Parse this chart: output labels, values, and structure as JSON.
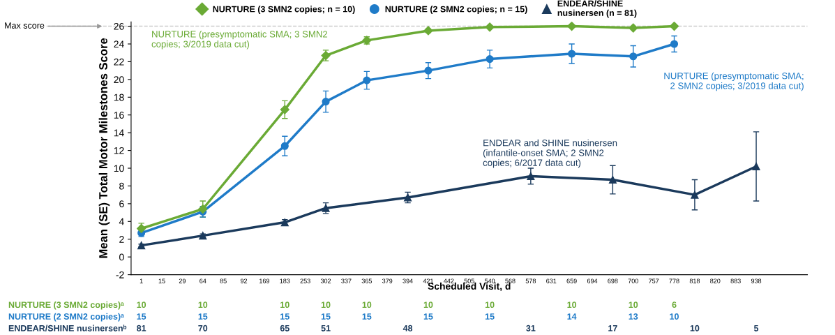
{
  "chart_data": {
    "type": "line",
    "ylabel": "Mean (SE) Total Motor Milestones Score",
    "xlabel": "Scheduled Visit, d",
    "categories": [
      "1",
      "15",
      "29",
      "64",
      "85",
      "92",
      "169",
      "183",
      "253",
      "302",
      "337",
      "365",
      "379",
      "394",
      "421",
      "442",
      "505",
      "540",
      "568",
      "578",
      "631",
      "659",
      "694",
      "698",
      "700",
      "757",
      "778",
      "818",
      "820",
      "883",
      "938"
    ],
    "series": [
      {
        "name": "NURTURE (3 SMN2 copies; n = 10)",
        "color": "#6aaa35",
        "marker": "diamond",
        "x": [
          "1",
          "64",
          "183",
          "302",
          "365",
          "421",
          "540",
          "659",
          "700",
          "778"
        ],
        "values": [
          3.2,
          5.4,
          16.6,
          22.7,
          24.4,
          25.5,
          25.9,
          26.0,
          25.8,
          26.0
        ],
        "errors": [
          0.6,
          0.9,
          1.0,
          0.6,
          0.4,
          0.2,
          0.1,
          0.1,
          0.1,
          0.1
        ]
      },
      {
        "name": "NURTURE (2 SMN2 copies; n = 15)",
        "color": "#1f7bc8",
        "marker": "circle",
        "x": [
          "1",
          "64",
          "183",
          "302",
          "365",
          "421",
          "540",
          "659",
          "700",
          "778"
        ],
        "values": [
          2.7,
          5.1,
          12.5,
          17.5,
          19.9,
          21.0,
          22.3,
          22.9,
          22.6,
          24.0
        ],
        "errors": [
          0.4,
          0.6,
          1.1,
          1.2,
          1.0,
          0.9,
          1.0,
          1.1,
          1.2,
          0.9
        ]
      },
      {
        "name": "ENDEAR/SHINE\nnusinersen (n = 81)",
        "color": "#1b3a5c",
        "marker": "triangle",
        "x": [
          "1",
          "64",
          "183",
          "302",
          "394",
          "578",
          "698",
          "818",
          "938"
        ],
        "values": [
          1.3,
          2.4,
          3.9,
          5.5,
          6.7,
          9.1,
          8.7,
          7.0,
          10.2
        ],
        "errors": [
          0.15,
          0.2,
          0.3,
          0.6,
          0.6,
          0.9,
          1.6,
          1.7,
          3.9
        ]
      }
    ],
    "ylim": [
      -2,
      26.5
    ],
    "yticks": [
      -2,
      0,
      2,
      4,
      6,
      8,
      10,
      12,
      14,
      16,
      18,
      20,
      22,
      24,
      26
    ],
    "ref_lines": [
      {
        "axis": "y",
        "value": 26,
        "label": "Max score",
        "color": "#cccccc",
        "line_style": "dashed"
      }
    ],
    "legend": "top",
    "grid": false,
    "line_style": "solid",
    "annotations": [
      "NURTURE (presymptomatic SMA; 3 SMN2\ncopies; 3/2019 data cut)",
      "NURTURE (presymptomatic SMA;\n2 SMN2 copies; 3/2019 data cut)",
      "ENDEAR and SHINE nusinersen\n(infantile-onset SMA; 2 SMN2\ncopies; 6/2017 data cut)",
      "NURTURE (3 SMN2 copies)ᵃ",
      "10",
      "10",
      "10",
      "10",
      "10",
      "10",
      "10",
      "10",
      "10",
      "6",
      "NURTURE (2 SMN2 copies)ᵃ",
      "15",
      "15",
      "15",
      "15",
      "15",
      "15",
      "15",
      "14",
      "13",
      "10",
      "ENDEAR/SHINE nusinersenᵇ",
      "81",
      "70",
      "65",
      "51",
      "48",
      "31",
      "17",
      "10",
      "5"
    ]
  }
}
